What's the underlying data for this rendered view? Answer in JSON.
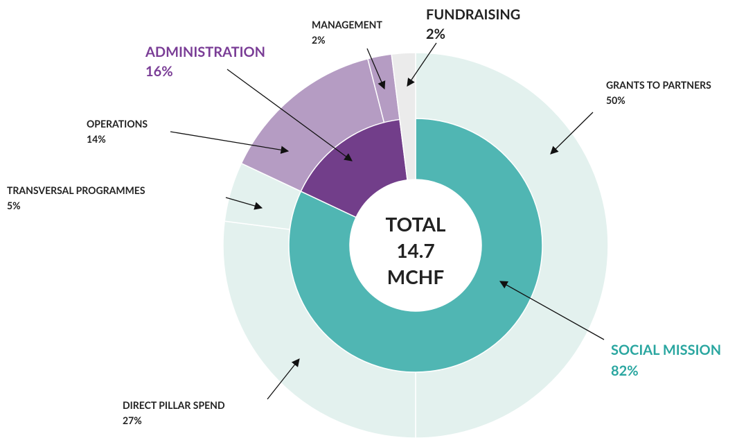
{
  "chart_data": {
    "type": "sunburst",
    "center_label": [
      "TOTAL",
      "14.7",
      "MCHF"
    ],
    "inner": {
      "categories": [
        "SOCIAL MISSION",
        "ADMINISTRATION",
        "FUNDRAISING"
      ],
      "values": [
        82,
        16,
        2
      ],
      "value_labels": [
        "82%",
        "16%",
        "2%"
      ],
      "colors": [
        "#50b6b3",
        "#723e8a",
        "#ebebeb"
      ]
    },
    "outer": {
      "categories": [
        "GRANTS TO PARTNERS",
        "DIRECT PILLAR SPEND",
        "TRANSVERSAL PROGRAMMES",
        "OPERATIONS",
        "MANAGEMENT"
      ],
      "values": [
        50,
        27,
        5,
        14,
        2
      ],
      "value_labels": [
        "50%",
        "27%",
        "5%",
        "14%",
        "2%"
      ],
      "colors": [
        "#e3f1ee",
        "#e3f1ee",
        "#e3f1ee",
        "#b59cc3",
        "#b59cc3"
      ]
    }
  }
}
